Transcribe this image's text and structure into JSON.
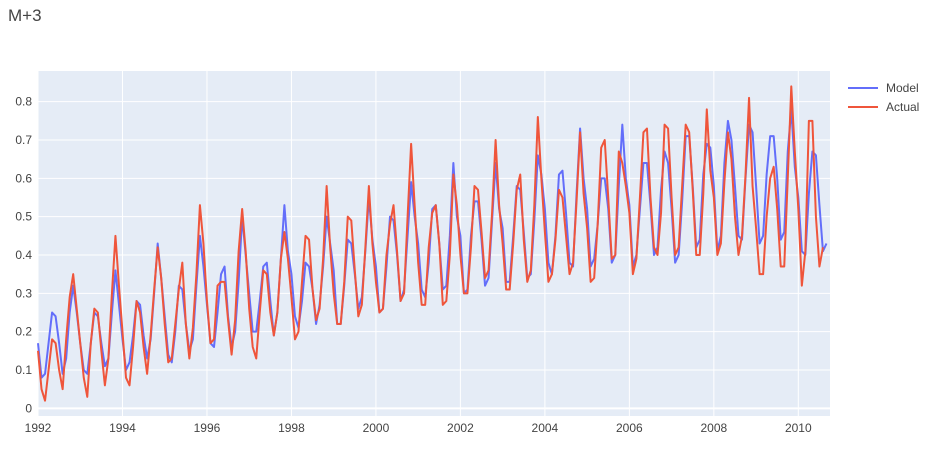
{
  "chart_data": {
    "type": "line",
    "title": "M+3",
    "xlabel": "",
    "ylabel": "",
    "xlim": [
      1992.0,
      2010.75
    ],
    "ylim": [
      -0.02,
      0.88
    ],
    "x_ticks": [
      1992,
      1994,
      1996,
      1998,
      2000,
      2002,
      2004,
      2006,
      2008,
      2010
    ],
    "x_tick_labels": [
      "1992",
      "1994",
      "1996",
      "1998",
      "2000",
      "2002",
      "2004",
      "2006",
      "2008",
      "2010"
    ],
    "y_ticks": [
      0,
      0.1,
      0.2,
      0.3,
      0.4,
      0.5,
      0.6,
      0.7,
      0.8
    ],
    "y_tick_labels": [
      "0",
      "0.1",
      "0.2",
      "0.3",
      "0.4",
      "0.5",
      "0.6",
      "0.7",
      "0.8"
    ],
    "grid": true,
    "legend_position": "top-right",
    "x_start": 1992.0,
    "x_step": 0.0833333,
    "series": [
      {
        "name": "Model",
        "color": "#636efa",
        "values": [
          0.17,
          0.08,
          0.09,
          0.17,
          0.25,
          0.24,
          0.17,
          0.09,
          0.13,
          0.25,
          0.32,
          0.25,
          0.17,
          0.1,
          0.09,
          0.17,
          0.25,
          0.24,
          0.17,
          0.11,
          0.13,
          0.25,
          0.36,
          0.27,
          0.18,
          0.1,
          0.12,
          0.19,
          0.28,
          0.27,
          0.19,
          0.13,
          0.18,
          0.3,
          0.43,
          0.34,
          0.24,
          0.14,
          0.12,
          0.2,
          0.32,
          0.31,
          0.22,
          0.15,
          0.18,
          0.32,
          0.45,
          0.37,
          0.27,
          0.17,
          0.16,
          0.25,
          0.35,
          0.37,
          0.24,
          0.16,
          0.2,
          0.33,
          0.5,
          0.4,
          0.3,
          0.2,
          0.2,
          0.28,
          0.37,
          0.38,
          0.28,
          0.19,
          0.25,
          0.39,
          0.53,
          0.41,
          0.35,
          0.24,
          0.21,
          0.28,
          0.38,
          0.37,
          0.31,
          0.22,
          0.27,
          0.37,
          0.5,
          0.43,
          0.36,
          0.22,
          0.22,
          0.32,
          0.44,
          0.43,
          0.35,
          0.26,
          0.29,
          0.41,
          0.55,
          0.44,
          0.37,
          0.25,
          0.26,
          0.37,
          0.5,
          0.49,
          0.4,
          0.28,
          0.31,
          0.45,
          0.59,
          0.5,
          0.43,
          0.31,
          0.29,
          0.38,
          0.52,
          0.53,
          0.43,
          0.31,
          0.32,
          0.45,
          0.64,
          0.5,
          0.45,
          0.3,
          0.31,
          0.45,
          0.54,
          0.54,
          0.44,
          0.32,
          0.34,
          0.49,
          0.64,
          0.52,
          0.47,
          0.33,
          0.33,
          0.45,
          0.58,
          0.57,
          0.46,
          0.34,
          0.35,
          0.49,
          0.66,
          0.61,
          0.52,
          0.38,
          0.35,
          0.45,
          0.61,
          0.62,
          0.51,
          0.38,
          0.37,
          0.56,
          0.73,
          0.6,
          0.52,
          0.37,
          0.39,
          0.48,
          0.6,
          0.6,
          0.52,
          0.38,
          0.4,
          0.58,
          0.74,
          0.6,
          0.53,
          0.37,
          0.4,
          0.52,
          0.64,
          0.64,
          0.53,
          0.4,
          0.42,
          0.57,
          0.67,
          0.64,
          0.52,
          0.38,
          0.4,
          0.54,
          0.71,
          0.71,
          0.58,
          0.42,
          0.44,
          0.61,
          0.69,
          0.68,
          0.58,
          0.41,
          0.45,
          0.64,
          0.75,
          0.7,
          0.58,
          0.45,
          0.44,
          0.6,
          0.74,
          0.72,
          0.58,
          0.43,
          0.45,
          0.61,
          0.71,
          0.71,
          0.6,
          0.44,
          0.46,
          0.67,
          0.78,
          0.63,
          0.55,
          0.41,
          0.4,
          0.56,
          0.67,
          0.66,
          0.53,
          0.41,
          0.43
        ]
      },
      {
        "name": "Actual",
        "color": "#ef553b",
        "values": [
          0.15,
          0.05,
          0.02,
          0.1,
          0.18,
          0.17,
          0.1,
          0.05,
          0.18,
          0.29,
          0.35,
          0.26,
          0.17,
          0.08,
          0.03,
          0.17,
          0.26,
          0.25,
          0.15,
          0.06,
          0.13,
          0.3,
          0.45,
          0.32,
          0.2,
          0.08,
          0.06,
          0.16,
          0.28,
          0.25,
          0.16,
          0.09,
          0.19,
          0.31,
          0.42,
          0.34,
          0.22,
          0.12,
          0.13,
          0.22,
          0.31,
          0.38,
          0.22,
          0.13,
          0.21,
          0.35,
          0.53,
          0.43,
          0.28,
          0.17,
          0.18,
          0.32,
          0.33,
          0.33,
          0.23,
          0.14,
          0.23,
          0.41,
          0.52,
          0.41,
          0.26,
          0.16,
          0.13,
          0.25,
          0.36,
          0.35,
          0.25,
          0.19,
          0.25,
          0.39,
          0.46,
          0.39,
          0.29,
          0.18,
          0.2,
          0.33,
          0.45,
          0.44,
          0.31,
          0.23,
          0.26,
          0.39,
          0.58,
          0.42,
          0.3,
          0.22,
          0.22,
          0.33,
          0.5,
          0.49,
          0.36,
          0.24,
          0.27,
          0.42,
          0.58,
          0.43,
          0.33,
          0.25,
          0.26,
          0.4,
          0.48,
          0.53,
          0.41,
          0.28,
          0.3,
          0.5,
          0.69,
          0.53,
          0.38,
          0.27,
          0.27,
          0.42,
          0.51,
          0.53,
          0.43,
          0.27,
          0.28,
          0.4,
          0.61,
          0.53,
          0.4,
          0.3,
          0.3,
          0.42,
          0.58,
          0.57,
          0.46,
          0.34,
          0.36,
          0.51,
          0.7,
          0.53,
          0.43,
          0.31,
          0.31,
          0.43,
          0.57,
          0.61,
          0.44,
          0.33,
          0.36,
          0.53,
          0.76,
          0.6,
          0.46,
          0.33,
          0.35,
          0.44,
          0.57,
          0.55,
          0.45,
          0.35,
          0.38,
          0.54,
          0.72,
          0.56,
          0.47,
          0.33,
          0.34,
          0.48,
          0.68,
          0.7,
          0.55,
          0.39,
          0.4,
          0.67,
          0.64,
          0.58,
          0.51,
          0.35,
          0.39,
          0.55,
          0.72,
          0.73,
          0.55,
          0.42,
          0.4,
          0.51,
          0.74,
          0.73,
          0.55,
          0.4,
          0.42,
          0.58,
          0.74,
          0.72,
          0.57,
          0.4,
          0.4,
          0.56,
          0.78,
          0.62,
          0.55,
          0.4,
          0.43,
          0.59,
          0.72,
          0.65,
          0.5,
          0.4,
          0.45,
          0.61,
          0.81,
          0.58,
          0.47,
          0.35,
          0.35,
          0.5,
          0.6,
          0.63,
          0.52,
          0.37,
          0.37,
          0.6,
          0.84,
          0.67,
          0.52,
          0.32,
          0.41,
          0.75,
          0.75,
          0.5,
          0.37,
          0.42
        ]
      }
    ]
  }
}
